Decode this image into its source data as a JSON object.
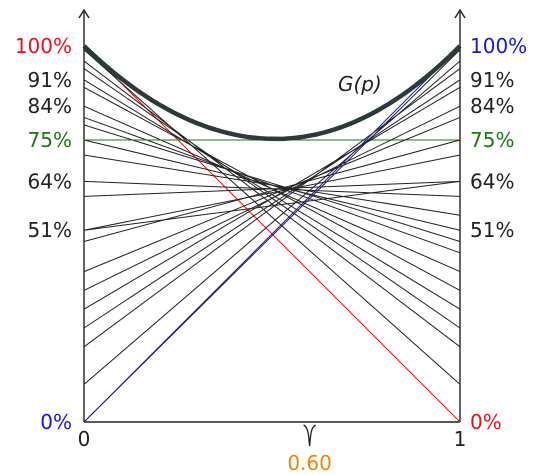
{
  "diagram": {
    "curve_label": "G(p)",
    "x_axis": {
      "tick_start": "0",
      "tick_end": "1",
      "marker_label": "0.60",
      "marker_value": 0.6
    },
    "left_labels": [
      {
        "text": "100%",
        "value": 1.0,
        "color": "#e8101a"
      },
      {
        "text": "91%",
        "value": 0.91,
        "color": "#222222"
      },
      {
        "text": "84%",
        "value": 0.84,
        "color": "#222222"
      },
      {
        "text": "75%",
        "value": 0.75,
        "color": "#1b7a10"
      },
      {
        "text": "64%",
        "value": 0.64,
        "color": "#222222"
      },
      {
        "text": "51%",
        "value": 0.51,
        "color": "#222222"
      },
      {
        "text": "0%",
        "value": 0.0,
        "color": "#1616e8"
      }
    ],
    "right_labels": [
      {
        "text": "100%",
        "value": 1.0,
        "color": "#1616e8"
      },
      {
        "text": "91%",
        "value": 0.91,
        "color": "#222222"
      },
      {
        "text": "84%",
        "value": 0.84,
        "color": "#222222"
      },
      {
        "text": "75%",
        "value": 0.75,
        "color": "#1b7a10"
      },
      {
        "text": "64%",
        "value": 0.64,
        "color": "#222222"
      },
      {
        "text": "51%",
        "value": 0.51,
        "color": "#222222"
      },
      {
        "text": "0%",
        "value": 0.0,
        "color": "#e8101a"
      }
    ],
    "tangent_lines": [
      {
        "left": 1.0,
        "right": 0.0,
        "color": "#e8101a"
      },
      {
        "left": 0.99,
        "right": 0.1,
        "color": "#222222"
      },
      {
        "left": 0.96,
        "right": 0.2,
        "color": "#222222"
      },
      {
        "left": 0.94,
        "right": 0.25,
        "color": "#222222"
      },
      {
        "left": 0.91,
        "right": 0.3,
        "color": "#222222"
      },
      {
        "left": 0.89,
        "right": 0.35,
        "color": "#222222"
      },
      {
        "left": 0.84,
        "right": 0.4,
        "color": "#222222"
      },
      {
        "left": 0.81,
        "right": 0.45,
        "color": "#222222"
      },
      {
        "left": 0.79,
        "right": 0.48,
        "color": "#222222"
      },
      {
        "left": 0.75,
        "right": 0.51,
        "color": "#222222"
      },
      {
        "left": 0.71,
        "right": 0.55,
        "color": "#222222"
      },
      {
        "left": 0.64,
        "right": 0.6,
        "color": "#222222"
      },
      {
        "left": 0.6,
        "right": 0.64,
        "color": "#222222"
      },
      {
        "left": 0.51,
        "right": 0.64,
        "color": "#222222"
      },
      {
        "left": 0.75,
        "right": 0.75,
        "color": "#1b7a10"
      },
      {
        "left": 0.51,
        "right": 0.71,
        "color": "#222222"
      },
      {
        "left": 0.48,
        "right": 0.75,
        "color": "#222222"
      },
      {
        "left": 0.4,
        "right": 0.81,
        "color": "#222222"
      },
      {
        "left": 0.35,
        "right": 0.84,
        "color": "#222222"
      },
      {
        "left": 0.3,
        "right": 0.89,
        "color": "#222222"
      },
      {
        "left": 0.25,
        "right": 0.91,
        "color": "#222222"
      },
      {
        "left": 0.2,
        "right": 0.94,
        "color": "#222222"
      },
      {
        "left": 0.1,
        "right": 0.96,
        "color": "#222222"
      },
      {
        "left": 0.0,
        "right": 0.99,
        "color": "#222222"
      },
      {
        "left": 0.0,
        "right": 1.0,
        "color": "#1616e8"
      }
    ],
    "colors": {
      "curve": "#2c3a3a",
      "axis": "#222222",
      "marker": "#f0850a"
    }
  }
}
